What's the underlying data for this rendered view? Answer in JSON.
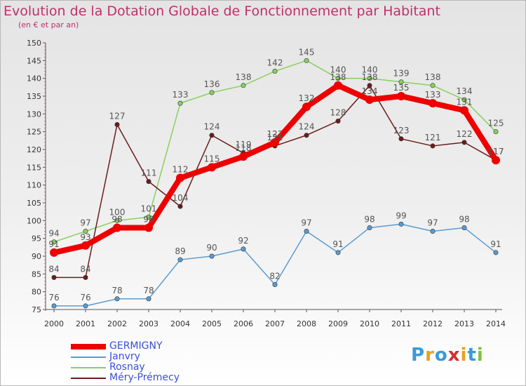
{
  "title": "Evolution de la Dotation Globale de Fonctionnement par Habitant",
  "subtitle": "(en € et par an)",
  "logo": {
    "letters": [
      "P",
      "r",
      "o",
      "x",
      "i",
      "t",
      "i"
    ],
    "colors": [
      "#3a9ad9",
      "#e8a020",
      "#3a9ad9",
      "#d03030",
      "#e8a020",
      "#3a9ad9",
      "#7fc040"
    ]
  },
  "chart_data": {
    "type": "line",
    "title": "Evolution de la Dotation Globale de Fonctionnement par Habitant",
    "ylabel": "(en € et par an)",
    "x": [
      "2000",
      "2001",
      "2002",
      "2003",
      "2004",
      "2005",
      "2006",
      "2007",
      "2008",
      "2009",
      "2010",
      "2011",
      "2012",
      "2013",
      "2014"
    ],
    "ylim": [
      75,
      150
    ],
    "yticks": [
      75,
      80,
      85,
      90,
      95,
      100,
      105,
      110,
      115,
      120,
      125,
      130,
      135,
      140,
      145,
      150
    ],
    "series": [
      {
        "name": "GERMIGNY",
        "color": "#ee0000",
        "thick": true,
        "values": [
          91,
          93,
          98,
          98,
          112,
          115,
          118,
          122,
          132,
          138,
          134,
          135,
          133,
          131,
          117
        ]
      },
      {
        "name": "Janvry",
        "color": "#5b9bd0",
        "thick": false,
        "values": [
          76,
          76,
          78,
          78,
          89,
          90,
          92,
          82,
          97,
          91,
          98,
          99,
          97,
          98,
          91
        ]
      },
      {
        "name": "Rosnay",
        "color": "#88d060",
        "thick": false,
        "values": [
          94,
          97,
          100,
          101,
          133,
          136,
          138,
          142,
          145,
          140,
          140,
          139,
          138,
          134,
          125
        ]
      },
      {
        "name": "Méry-Prémecy",
        "color": "#6b1c1c",
        "thick": false,
        "values": [
          84,
          84,
          127,
          111,
          104,
          124,
          119,
          121,
          124,
          128,
          138,
          123,
          121,
          122,
          117
        ]
      }
    ]
  }
}
